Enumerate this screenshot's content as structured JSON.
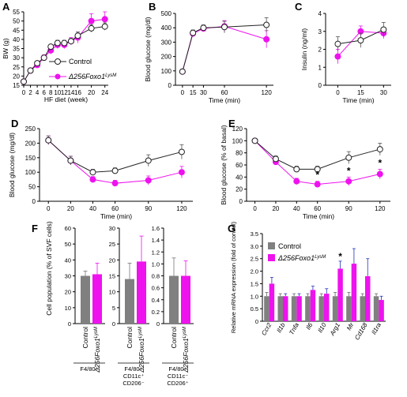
{
  "colors": {
    "control": "#222222",
    "ko": "#ee12ee",
    "bar_control": "#808080",
    "bar_ko": "#ee12ee",
    "axis": "#000000",
    "error": "#999999"
  },
  "chart_data": [
    {
      "panel": "A",
      "type": "line",
      "xlabel": "HF diet (week)",
      "ylabel": "BW (g)",
      "xlim": [
        0,
        25
      ],
      "ylim": [
        15,
        55
      ],
      "xticks": [
        0,
        2,
        4,
        6,
        8,
        10,
        12,
        14,
        16,
        20,
        24
      ],
      "xtick_labels": [
        "0",
        "2",
        "4",
        "6",
        "8",
        "10",
        "12",
        "14",
        "16",
        "20",
        "24"
      ],
      "yticks": [
        15,
        20,
        25,
        30,
        35,
        40,
        45,
        50,
        55
      ],
      "legend": [
        "Control",
        "Δ256Foxo1LysM"
      ],
      "series": [
        {
          "name": "Control",
          "style": "open",
          "x": [
            0,
            2,
            4,
            6,
            8,
            10,
            12,
            14,
            16,
            20,
            24
          ],
          "y": [
            17,
            23,
            27,
            30,
            36,
            38,
            38,
            39,
            42,
            46,
            47
          ],
          "err": [
            1,
            1,
            1,
            1,
            1,
            1.5,
            1.5,
            1.5,
            2,
            2,
            2
          ]
        },
        {
          "name": "Δ256Foxo1LysM",
          "style": "filled",
          "x": [
            0,
            2,
            4,
            6,
            8,
            10,
            12,
            14,
            16,
            20,
            24
          ],
          "y": [
            17,
            23,
            26,
            30,
            34,
            37,
            37,
            39,
            41,
            50,
            51
          ],
          "err": [
            1,
            1,
            1,
            1.5,
            2,
            2,
            2,
            2,
            3,
            4,
            4
          ]
        }
      ]
    },
    {
      "panel": "B",
      "type": "line",
      "xlabel": "Time (min)",
      "ylabel": "Blood glucose (mg/dl)",
      "xlim": [
        -10,
        130
      ],
      "ylim": [
        0,
        500
      ],
      "xticks": [
        0,
        15,
        30,
        60,
        120
      ],
      "xtick_labels": [
        "0",
        "15",
        "30",
        "60",
        "120"
      ],
      "yticks": [
        0,
        100,
        200,
        300,
        400,
        500
      ],
      "series": [
        {
          "name": "Control",
          "style": "open",
          "x": [
            0,
            15,
            30,
            60,
            120
          ],
          "y": [
            95,
            365,
            400,
            405,
            420
          ],
          "err": [
            10,
            20,
            20,
            40,
            50
          ]
        },
        {
          "name": "Δ256Foxo1LysM",
          "style": "filled",
          "x": [
            0,
            15,
            30,
            60,
            120
          ],
          "y": [
            95,
            360,
            395,
            410,
            320
          ],
          "err": [
            10,
            20,
            20,
            40,
            60
          ]
        }
      ]
    },
    {
      "panel": "C",
      "type": "line",
      "xlabel": "Time (min)",
      "ylabel": "Insulin (ng/ml)",
      "xlim": [
        -8,
        35
      ],
      "ylim": [
        0,
        4
      ],
      "xticks": [
        0,
        15,
        30
      ],
      "xtick_labels": [
        "0",
        "15",
        "30"
      ],
      "yticks": [
        0,
        1,
        2,
        3,
        4
      ],
      "series": [
        {
          "name": "Control",
          "style": "open",
          "x": [
            0,
            15,
            30
          ],
          "y": [
            2.3,
            2.5,
            3.1
          ],
          "err": [
            0.4,
            0.4,
            0.4
          ]
        },
        {
          "name": "Δ256Foxo1LysM",
          "style": "filled",
          "x": [
            0,
            15,
            30
          ],
          "y": [
            1.6,
            3.0,
            2.9
          ],
          "err": [
            0.4,
            0.3,
            0.3
          ]
        }
      ]
    },
    {
      "panel": "D",
      "type": "line",
      "xlabel": "Time (min)",
      "ylabel": "Blood glucose (mg/dl)",
      "xlim": [
        -8,
        130
      ],
      "ylim": [
        0,
        250
      ],
      "xticks": [
        0,
        20,
        40,
        60,
        90,
        120
      ],
      "xtick_labels": [
        "0",
        "20",
        "40",
        "60",
        "90",
        "120"
      ],
      "yticks": [
        0,
        50,
        100,
        150,
        200,
        250
      ],
      "series": [
        {
          "name": "Control",
          "style": "open",
          "x": [
            0,
            20,
            40,
            60,
            90,
            120
          ],
          "y": [
            210,
            140,
            100,
            105,
            140,
            170
          ],
          "err": [
            15,
            15,
            10,
            10,
            20,
            25
          ]
        },
        {
          "name": "Δ256Foxo1LysM",
          "style": "filled",
          "x": [
            0,
            20,
            40,
            60,
            90,
            120
          ],
          "y": [
            210,
            140,
            75,
            62,
            72,
            100
          ],
          "err": [
            15,
            15,
            10,
            10,
            15,
            20
          ]
        }
      ]
    },
    {
      "panel": "E",
      "type": "line",
      "xlabel": "Time (min)",
      "ylabel": "Blood glucose (% of basal)",
      "xlim": [
        -8,
        130
      ],
      "ylim": [
        0,
        120
      ],
      "xticks": [
        0,
        20,
        40,
        60,
        90,
        120
      ],
      "xtick_labels": [
        "0",
        "20",
        "40",
        "60",
        "90",
        "120"
      ],
      "yticks": [
        0,
        20,
        40,
        60,
        80,
        100,
        120
      ],
      "annotations": [
        {
          "x": 60,
          "text": "*"
        },
        {
          "x": 90,
          "text": "*"
        },
        {
          "x": 120,
          "text": "*"
        }
      ],
      "series": [
        {
          "name": "Control",
          "style": "open",
          "x": [
            0,
            20,
            40,
            60,
            90,
            120
          ],
          "y": [
            100,
            70,
            53,
            53,
            72,
            86
          ],
          "err": [
            0,
            5,
            5,
            5,
            10,
            10
          ]
        },
        {
          "name": "Δ256Foxo1LysM",
          "style": "filled",
          "x": [
            0,
            20,
            40,
            60,
            90,
            120
          ],
          "y": [
            100,
            65,
            33,
            28,
            33,
            45
          ],
          "err": [
            0,
            5,
            5,
            5,
            7,
            8
          ]
        }
      ]
    },
    {
      "panel": "F",
      "type": "bar",
      "ylabel": "Cell population (% of SVF cells)",
      "categories": [
        "Control",
        "Δ256Foxo1LysM"
      ],
      "groups": [
        {
          "label_lines": [
            "F4/80⁺"
          ],
          "ylim": [
            0,
            60
          ],
          "yticks": [
            0,
            10,
            20,
            30,
            40,
            50,
            60
          ],
          "values": [
            30,
            31
          ],
          "err": [
            3,
            7
          ]
        },
        {
          "label_lines": [
            "F4/80⁺",
            "CD11c⁺",
            "CD206⁻"
          ],
          "ylim": [
            0,
            30
          ],
          "yticks": [
            0,
            5,
            10,
            15,
            20,
            25,
            30
          ],
          "values": [
            14,
            19.5
          ],
          "err": [
            5,
            8
          ]
        },
        {
          "label_lines": [
            "F4/80⁺",
            "CD11c⁻",
            "CD206⁺"
          ],
          "ylim": [
            0,
            1.6
          ],
          "yticks": [
            0,
            0.2,
            0.4,
            0.6,
            0.8,
            1.0,
            1.2,
            1.4,
            1.6
          ],
          "ytick_labels": [
            "0",
            "0.2",
            "0.4",
            "0.6",
            "0.8",
            "1.0",
            "1.2",
            "1.4",
            "1.6"
          ],
          "values": [
            0.8,
            0.8
          ],
          "err": [
            0.3,
            0.25
          ]
        }
      ]
    },
    {
      "panel": "G",
      "type": "bar",
      "ylabel": "Relative mRNA expression (fold of control)",
      "ylim": [
        0,
        3.5
      ],
      "yticks": [
        0,
        0.5,
        1.0,
        1.5,
        2.0,
        2.5,
        3.0,
        3.5
      ],
      "ytick_labels": [
        "0",
        "0.5",
        "1.0",
        "1.5",
        "2.0",
        "2.5",
        "3.0",
        "3.5"
      ],
      "categories": [
        "Ccr2",
        "Il1b",
        "Tnfa",
        "Il6",
        "Il10",
        "Arg1",
        "Mr",
        "Cd168",
        "Il1ra"
      ],
      "legend": [
        "Control",
        "Δ256Foxo1LysM"
      ],
      "annotations": [
        {
          "category": "Arg1",
          "text": "*"
        }
      ],
      "series": [
        {
          "name": "Control",
          "values": [
            1,
            1,
            1,
            1,
            1,
            1,
            1,
            1,
            1
          ],
          "err": [
            0.15,
            0.1,
            0.1,
            0.1,
            0.1,
            0.15,
            0.15,
            0.1,
            0.1
          ]
        },
        {
          "name": "Δ256Foxo1LysM",
          "values": [
            1.5,
            1.0,
            1.0,
            1.25,
            1.1,
            2.1,
            2.3,
            1.8,
            0.85
          ],
          "err": [
            0.25,
            0.1,
            0.1,
            0.15,
            0.2,
            0.3,
            0.6,
            0.7,
            0.15
          ]
        }
      ]
    }
  ]
}
